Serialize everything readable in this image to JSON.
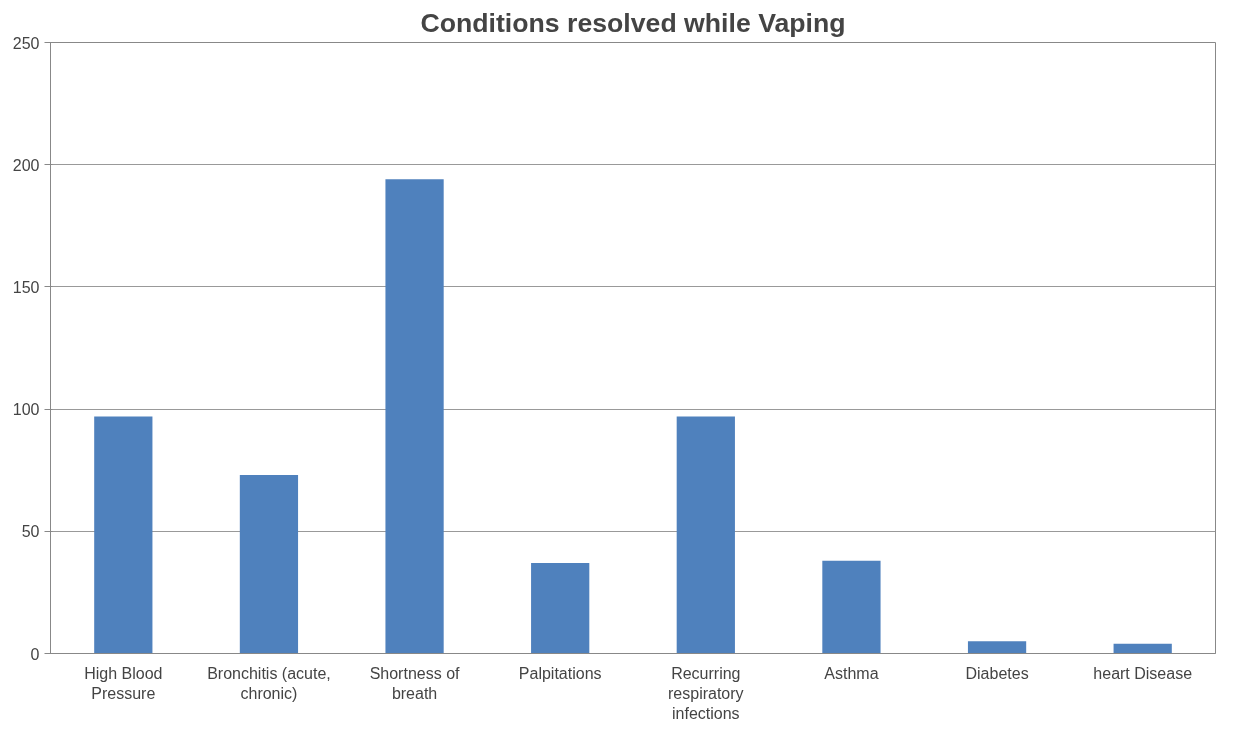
{
  "chart_data": {
    "type": "bar",
    "title": "Conditions resolved while Vaping",
    "categories": [
      "High Blood Pressure",
      "Bronchitis (acute, chronic)",
      "Shortness of breath",
      "Palpitations",
      "Recurring respiratory infections",
      "Asthma",
      "Diabetes",
      "heart Disease"
    ],
    "values": [
      97,
      73,
      194,
      37,
      97,
      38,
      5,
      4
    ],
    "color": "#4f81bd",
    "ylim": [
      0,
      250
    ],
    "yticks": [
      0,
      50,
      100,
      150,
      200,
      250
    ],
    "grid": "y"
  }
}
